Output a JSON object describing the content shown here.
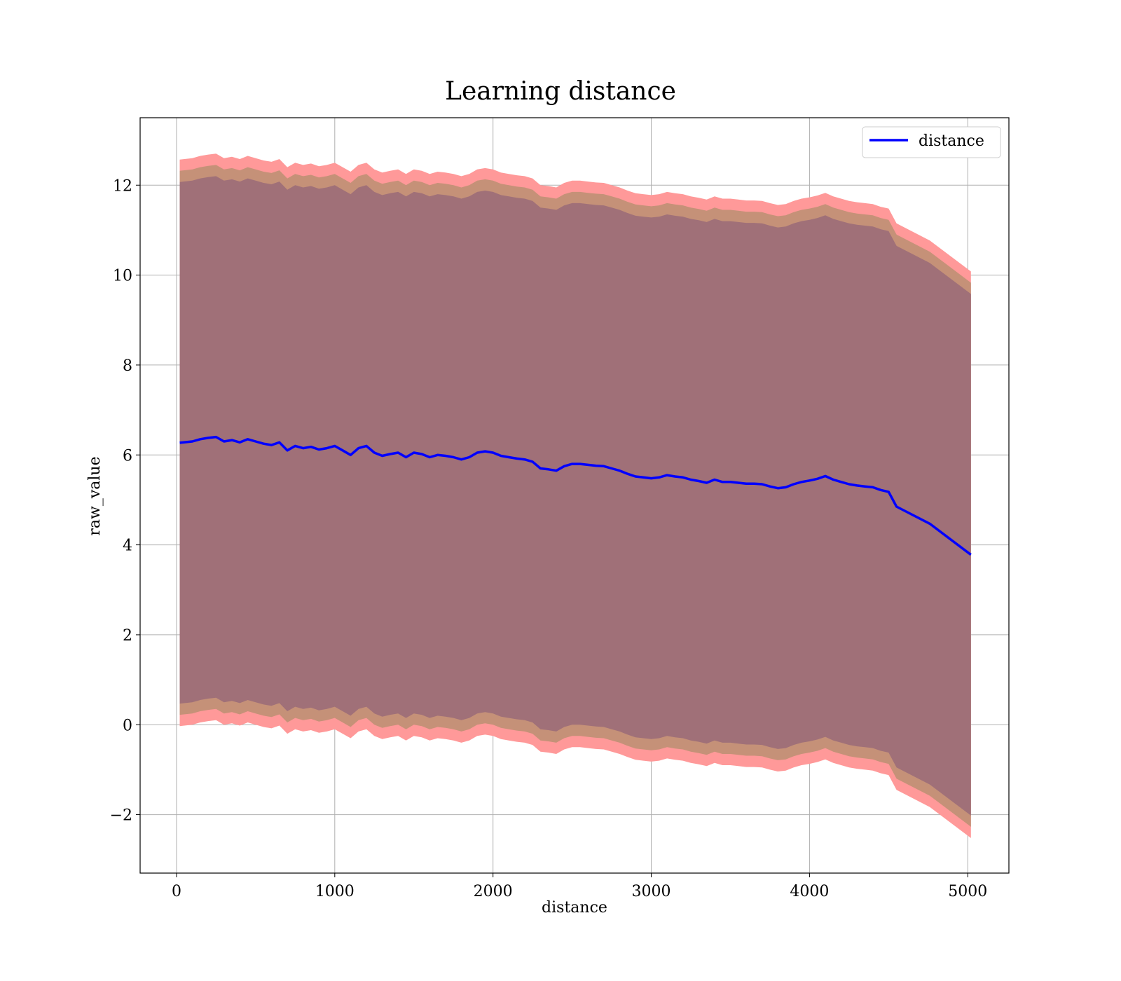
{
  "chart_data": {
    "type": "line",
    "title": "Learning distance",
    "xlabel": "distance",
    "ylabel": "raw_value",
    "xlim": [
      -230,
      5260
    ],
    "ylim": [
      -3.3,
      13.5
    ],
    "xticks": [
      0,
      1000,
      2000,
      3000,
      4000,
      5000
    ],
    "yticks": [
      -2,
      0,
      2,
      4,
      6,
      8,
      10,
      12
    ],
    "ytick_labels": [
      "−2",
      "0",
      "2",
      "4",
      "6",
      "8",
      "10",
      "12"
    ],
    "grid": true,
    "legend": {
      "placement": "top-right",
      "entries": [
        "distance"
      ]
    },
    "colors": {
      "line": "#0000ff",
      "band_outer": "#ff9999",
      "band_middle": "#c59178",
      "band_inner": "#a07078",
      "grid": "#b0b0b0"
    },
    "series": [
      {
        "name": "distance",
        "x": [
          20,
          100,
          150,
          200,
          250,
          300,
          350,
          400,
          450,
          500,
          550,
          600,
          650,
          700,
          750,
          800,
          850,
          900,
          950,
          1000,
          1050,
          1100,
          1150,
          1200,
          1250,
          1300,
          1350,
          1400,
          1450,
          1500,
          1550,
          1600,
          1650,
          1700,
          1750,
          1800,
          1850,
          1900,
          1950,
          2000,
          2050,
          2100,
          2150,
          2200,
          2250,
          2300,
          2350,
          2400,
          2450,
          2500,
          2550,
          2600,
          2650,
          2700,
          2750,
          2800,
          2850,
          2900,
          2950,
          3000,
          3050,
          3100,
          3150,
          3200,
          3250,
          3300,
          3350,
          3400,
          3450,
          3500,
          3550,
          3600,
          3650,
          3700,
          3750,
          3800,
          3850,
          3900,
          3950,
          4000,
          4050,
          4100,
          4150,
          4200,
          4250,
          4300,
          4350,
          4400,
          4450,
          4500,
          4550,
          4760,
          5020
        ],
        "y": [
          6.27,
          6.3,
          6.35,
          6.38,
          6.4,
          6.3,
          6.33,
          6.28,
          6.35,
          6.3,
          6.25,
          6.22,
          6.28,
          6.1,
          6.2,
          6.15,
          6.18,
          6.12,
          6.15,
          6.2,
          6.1,
          6.0,
          6.15,
          6.2,
          6.05,
          5.98,
          6.02,
          6.05,
          5.95,
          6.05,
          6.02,
          5.95,
          6.0,
          5.98,
          5.95,
          5.9,
          5.95,
          6.05,
          6.08,
          6.05,
          5.98,
          5.95,
          5.92,
          5.9,
          5.85,
          5.7,
          5.68,
          5.65,
          5.75,
          5.8,
          5.8,
          5.78,
          5.76,
          5.75,
          5.7,
          5.65,
          5.58,
          5.52,
          5.5,
          5.48,
          5.5,
          5.55,
          5.52,
          5.5,
          5.45,
          5.42,
          5.38,
          5.45,
          5.4,
          5.4,
          5.38,
          5.36,
          5.36,
          5.35,
          5.3,
          5.26,
          5.28,
          5.35,
          5.4,
          5.43,
          5.47,
          5.53,
          5.45,
          5.4,
          5.35,
          5.32,
          5.3,
          5.28,
          5.22,
          5.18,
          4.85,
          4.47,
          3.78
        ]
      }
    ],
    "bands": [
      {
        "level": "outer",
        "half_width": 6.3
      },
      {
        "level": "middle",
        "half_width": 6.05
      },
      {
        "level": "inner",
        "half_width": 5.8
      }
    ]
  }
}
